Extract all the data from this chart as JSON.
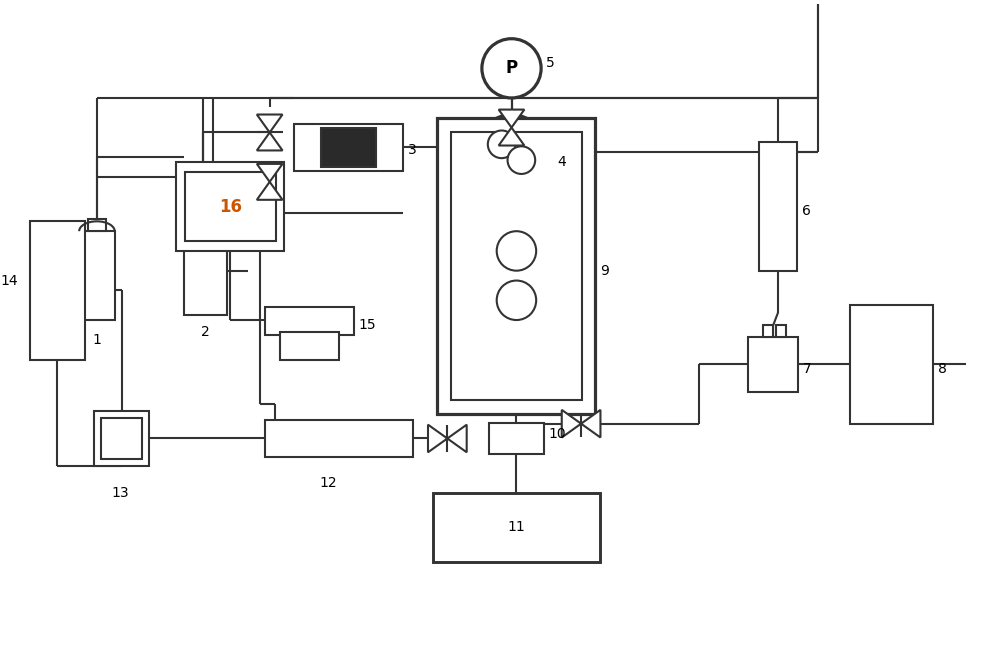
{
  "bg": "#ffffff",
  "lc": "#333333",
  "lw": 1.5,
  "orange": "#cc5500",
  "figw": 10.0,
  "figh": 6.45,
  "dpi": 100,
  "xlim": [
    0,
    100
  ],
  "ylim": [
    0,
    64.5
  ]
}
